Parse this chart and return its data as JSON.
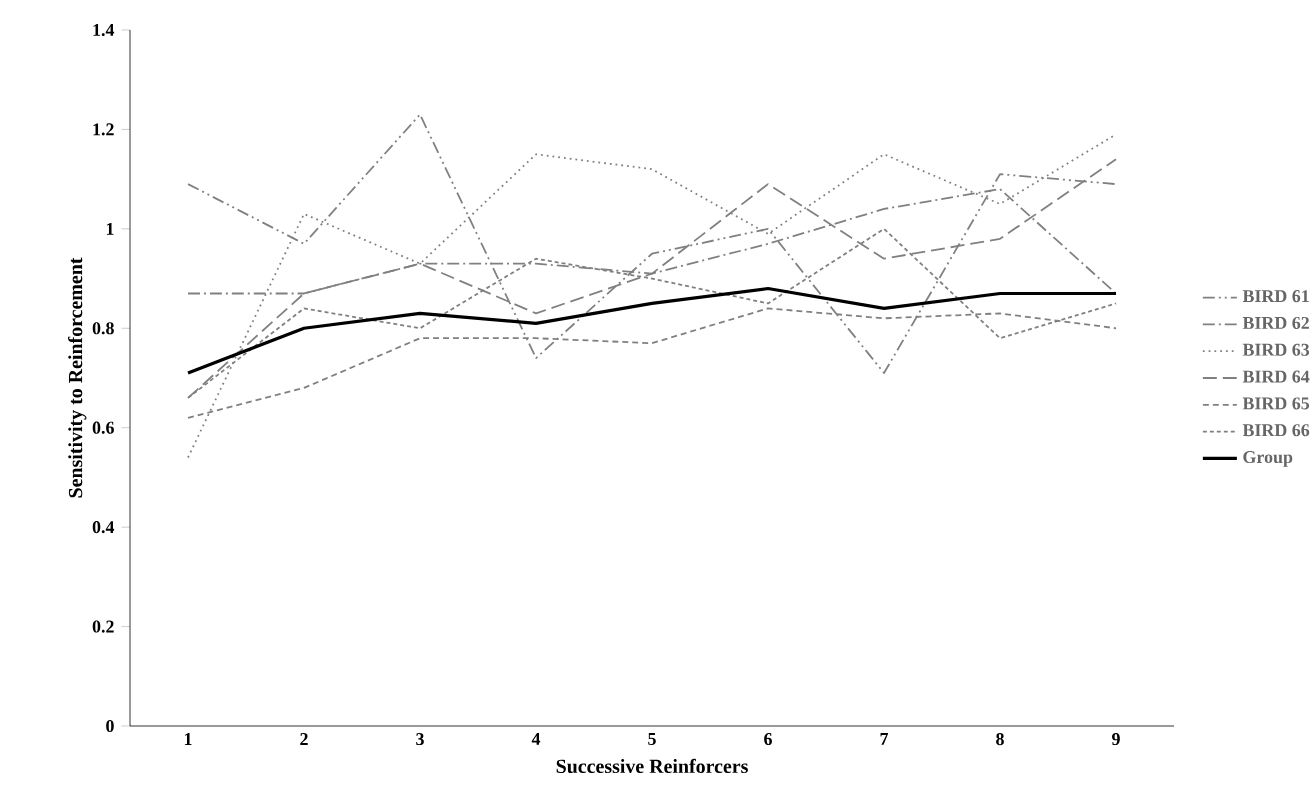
{
  "chart_data": {
    "type": "line",
    "xlabel": "Successive Reinforcers",
    "ylabel": "Sensitivity to Reinforcement",
    "categories": [
      "1",
      "2",
      "3",
      "4",
      "5",
      "6",
      "7",
      "8",
      "9"
    ],
    "ylim": [
      0,
      1.4
    ],
    "yticks": [
      0,
      0.2,
      0.4,
      0.6,
      0.8,
      1,
      1.2,
      1.4
    ],
    "grid": false,
    "legend": "right",
    "marker": "none",
    "series": [
      {
        "name": "BIRD 61",
        "color": "#808080",
        "line_style": "dashed",
        "values": [
          1.09,
          0.97,
          1.23,
          0.74,
          0.95,
          1.0,
          0.71,
          1.11,
          1.09
        ]
      },
      {
        "name": "BIRD 62",
        "color": "#808080",
        "line_style": "dashed",
        "values": [
          0.87,
          0.87,
          0.93,
          0.93,
          0.91,
          0.97,
          1.04,
          1.08,
          0.87
        ]
      },
      {
        "name": "BIRD 63",
        "color": "#808080",
        "line_style": "dotted",
        "values": [
          0.54,
          1.03,
          0.93,
          1.15,
          1.12,
          0.99,
          1.15,
          1.05,
          1.19
        ]
      },
      {
        "name": "BIRD 64",
        "color": "#808080",
        "line_style": "dashed",
        "values": [
          0.66,
          0.87,
          0.93,
          0.83,
          0.91,
          1.09,
          0.94,
          0.98,
          1.14
        ]
      },
      {
        "name": "BIRD 65",
        "color": "#808080",
        "line_style": "dashed",
        "values": [
          0.62,
          0.68,
          0.78,
          0.78,
          0.77,
          0.84,
          0.82,
          0.83,
          0.8
        ]
      },
      {
        "name": "BIRD 66",
        "color": "#808080",
        "line_style": "dashed",
        "values": [
          0.66,
          0.84,
          0.8,
          0.94,
          0.9,
          0.85,
          1.0,
          0.78,
          0.85
        ]
      },
      {
        "name": "Group",
        "color": "#000000",
        "line_style": "solid",
        "values": [
          0.71,
          0.8,
          0.83,
          0.81,
          0.85,
          0.88,
          0.84,
          0.87,
          0.87
        ]
      }
    ]
  }
}
